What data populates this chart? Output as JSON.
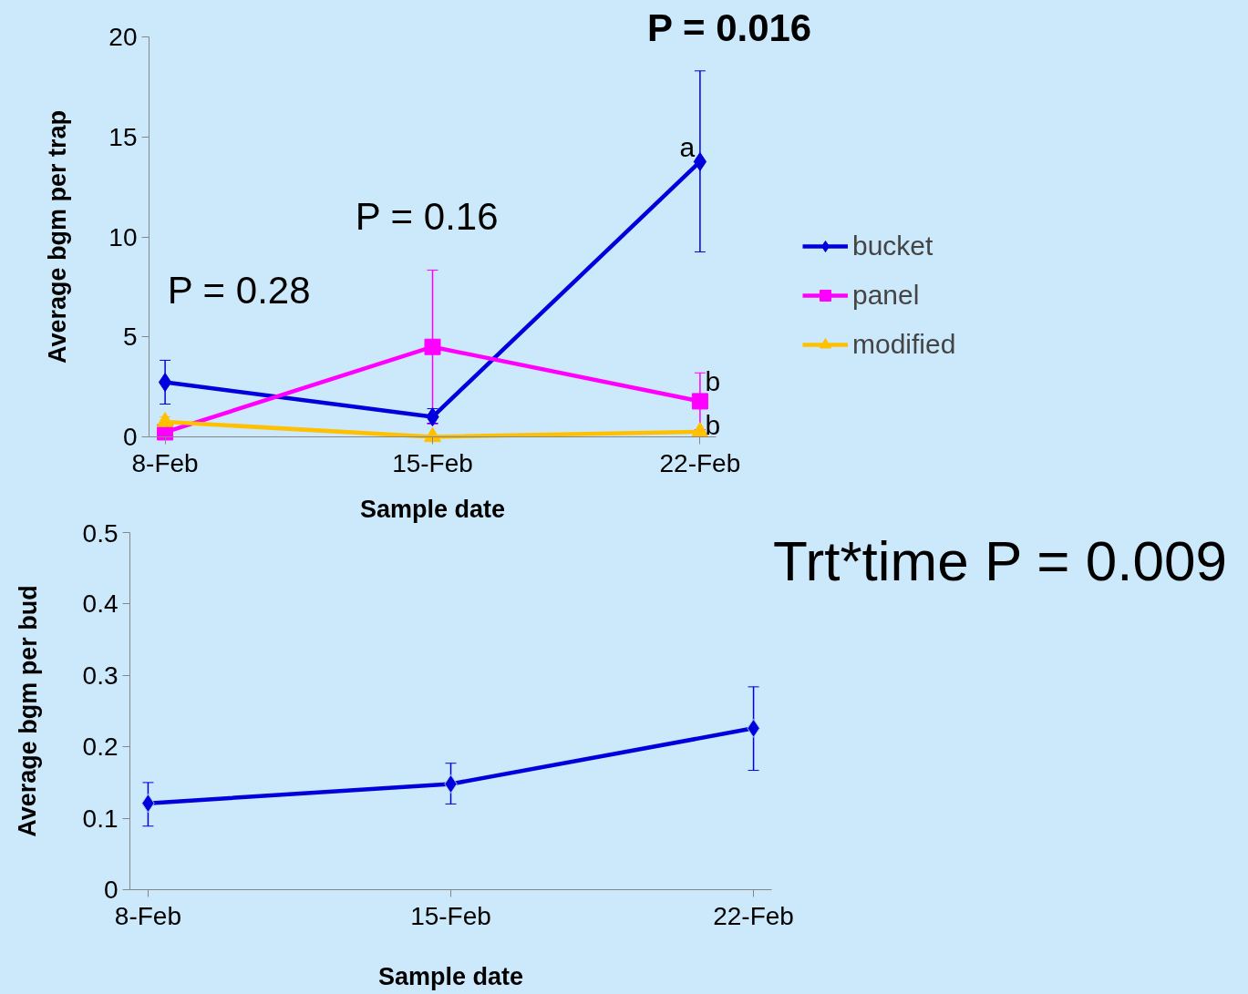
{
  "chart_data": [
    {
      "type": "line",
      "categories": [
        "8-Feb",
        "15-Feb",
        "22-Feb"
      ],
      "xlabel": "Sample date",
      "ylabel": "Average bgm per trap",
      "ylim": [
        0,
        20
      ],
      "yticks": [
        0,
        5,
        10,
        15,
        20
      ],
      "grid": false,
      "legend": "right",
      "line_style": "solid",
      "series": [
        {
          "name": "bucket",
          "color": "#0000dd",
          "marker": "diamond",
          "values": [
            2.73,
            1.0,
            13.76
          ],
          "errors": [
            [
              1.64,
              3.83
            ],
            [
              0.68,
              1.41
            ],
            [
              9.25,
              18.3
            ]
          ]
        },
        {
          "name": "panel",
          "color": "#ff00ff",
          "marker": "square",
          "values": [
            0.23,
            4.5,
            1.78
          ],
          "errors": [
            null,
            [
              0.64,
              8.34
            ],
            1.42
          ]
        },
        {
          "name": "modified",
          "color": "#ffc000",
          "marker": "triangle",
          "values": [
            0.75,
            0.0,
            0.25
          ],
          "errors": [
            0.25,
            null,
            null
          ]
        }
      ],
      "annotations": [
        "P = 0.28",
        "P = 0.16",
        "P = 0.016",
        {
          "text": "a",
          "x": "22-Feb",
          "y": 14.5
        },
        {
          "text": "b",
          "x": "22-Feb",
          "y": 2.8
        },
        {
          "text": "b",
          "x": "22-Feb",
          "y": 0.6
        }
      ]
    },
    {
      "type": "line",
      "categories": [
        "8-Feb",
        "15-Feb",
        "22-Feb"
      ],
      "xlabel": "Sample date",
      "ylabel": "Average bgm per bud",
      "ylim": [
        0,
        0.5
      ],
      "yticks": [
        {
          "value": 0,
          "label": "0"
        },
        0.1,
        0.2,
        0.3,
        0.4,
        0.5
      ],
      "grid": false,
      "legend": false,
      "line_style": "solid",
      "series": [
        {
          "color": "#0000dd",
          "marker": "diamond",
          "values": [
            0.121,
            0.148,
            0.226
          ],
          "errors": [
            [
              0.089,
              0.15
            ],
            [
              0.12,
              0.177
            ],
            [
              0.167,
              0.284
            ]
          ]
        }
      ],
      "annotations": [
        "Trt*time P = 0.009"
      ]
    }
  ]
}
